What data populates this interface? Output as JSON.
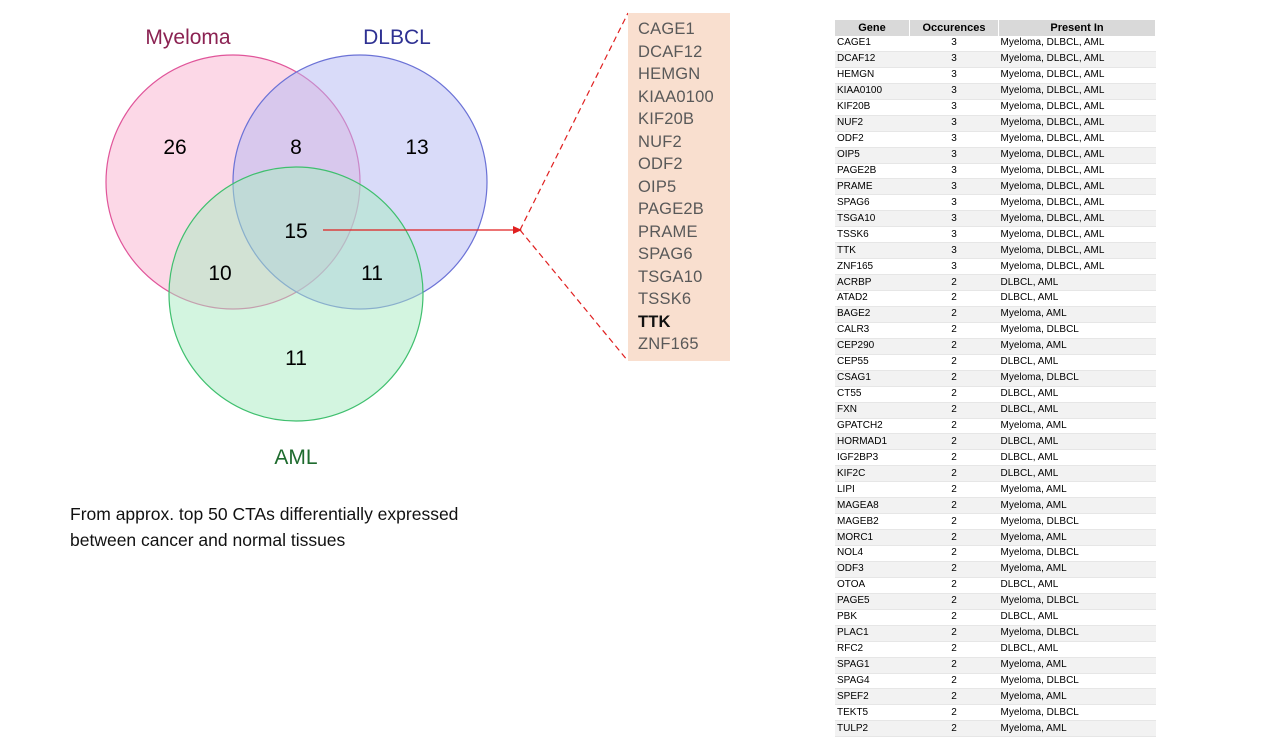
{
  "venn": {
    "sets": [
      {
        "name": "Myeloma",
        "color": "#8b2252",
        "fill": "#f9b8d3",
        "stroke": "#e0559a"
      },
      {
        "name": "DLBCL",
        "color": "#2e3192",
        "fill": "#c4c8f7",
        "stroke": "#6b72d6"
      },
      {
        "name": "AML",
        "color": "#1e6b2e",
        "fill": "#b8f0cc",
        "stroke": "#3fbf6e"
      }
    ],
    "regions": {
      "myeloma_only": "26",
      "myeloma_dlbcl": "8",
      "dlbcl_only": "13",
      "all_three": "15",
      "myeloma_aml": "10",
      "dlbcl_aml": "11",
      "aml_only": "11"
    }
  },
  "caption": {
    "line1": "From approx. top 50 CTAs differentially  expressed",
    "line2": "between cancer and normal tissues"
  },
  "gene_list": {
    "highlight_color": "#f9dfcf",
    "genes": [
      "CAGE1",
      "DCAF12",
      "HEMGN",
      "KIAA0100",
      "KIF20B",
      "NUF2",
      "ODF2",
      "OIP5",
      "PAGE2B",
      "PRAME",
      "SPAG6",
      "TSGA10",
      "TSSK6",
      "TTK",
      "ZNF165"
    ],
    "bold_gene": "TTK"
  },
  "table": {
    "headers": [
      "Gene",
      "Occurences",
      "Present In"
    ],
    "rows": [
      [
        "CAGE1",
        "3",
        "Myeloma, DLBCL, AML"
      ],
      [
        "DCAF12",
        "3",
        "Myeloma, DLBCL, AML"
      ],
      [
        "HEMGN",
        "3",
        "Myeloma, DLBCL, AML"
      ],
      [
        "KIAA0100",
        "3",
        "Myeloma, DLBCL, AML"
      ],
      [
        "KIF20B",
        "3",
        "Myeloma, DLBCL, AML"
      ],
      [
        "NUF2",
        "3",
        "Myeloma, DLBCL, AML"
      ],
      [
        "ODF2",
        "3",
        "Myeloma, DLBCL, AML"
      ],
      [
        "OIP5",
        "3",
        "Myeloma, DLBCL, AML"
      ],
      [
        "PAGE2B",
        "3",
        "Myeloma, DLBCL, AML"
      ],
      [
        "PRAME",
        "3",
        "Myeloma, DLBCL, AML"
      ],
      [
        "SPAG6",
        "3",
        "Myeloma, DLBCL, AML"
      ],
      [
        "TSGA10",
        "3",
        "Myeloma, DLBCL, AML"
      ],
      [
        "TSSK6",
        "3",
        "Myeloma, DLBCL, AML"
      ],
      [
        "TTK",
        "3",
        "Myeloma, DLBCL, AML"
      ],
      [
        "ZNF165",
        "3",
        "Myeloma, DLBCL, AML"
      ],
      [
        "ACRBP",
        "2",
        "DLBCL, AML"
      ],
      [
        "ATAD2",
        "2",
        "DLBCL, AML"
      ],
      [
        "BAGE2",
        "2",
        "Myeloma, AML"
      ],
      [
        "CALR3",
        "2",
        "Myeloma, DLBCL"
      ],
      [
        "CEP290",
        "2",
        "Myeloma, AML"
      ],
      [
        "CEP55",
        "2",
        "DLBCL, AML"
      ],
      [
        "CSAG1",
        "2",
        "Myeloma, DLBCL"
      ],
      [
        "CT55",
        "2",
        "DLBCL, AML"
      ],
      [
        "FXN",
        "2",
        "DLBCL, AML"
      ],
      [
        "GPATCH2",
        "2",
        "Myeloma, AML"
      ],
      [
        "HORMAD1",
        "2",
        "DLBCL, AML"
      ],
      [
        "IGF2BP3",
        "2",
        "DLBCL, AML"
      ],
      [
        "KIF2C",
        "2",
        "DLBCL, AML"
      ],
      [
        "LIPI",
        "2",
        "Myeloma, AML"
      ],
      [
        "MAGEA8",
        "2",
        "Myeloma, AML"
      ],
      [
        "MAGEB2",
        "2",
        "Myeloma, DLBCL"
      ],
      [
        "MORC1",
        "2",
        "Myeloma, AML"
      ],
      [
        "NOL4",
        "2",
        "Myeloma, DLBCL"
      ],
      [
        "ODF3",
        "2",
        "Myeloma, AML"
      ],
      [
        "OTOA",
        "2",
        "DLBCL, AML"
      ],
      [
        "PAGE5",
        "2",
        "Myeloma, DLBCL"
      ],
      [
        "PBK",
        "2",
        "DLBCL, AML"
      ],
      [
        "PLAC1",
        "2",
        "Myeloma, DLBCL"
      ],
      [
        "RFC2",
        "2",
        "DLBCL, AML"
      ],
      [
        "SPAG1",
        "2",
        "Myeloma, AML"
      ],
      [
        "SPAG4",
        "2",
        "Myeloma, DLBCL"
      ],
      [
        "SPEF2",
        "2",
        "Myeloma, AML"
      ],
      [
        "TEKT5",
        "2",
        "Myeloma, DLBCL"
      ],
      [
        "TULP2",
        "2",
        "Myeloma, AML"
      ]
    ]
  }
}
